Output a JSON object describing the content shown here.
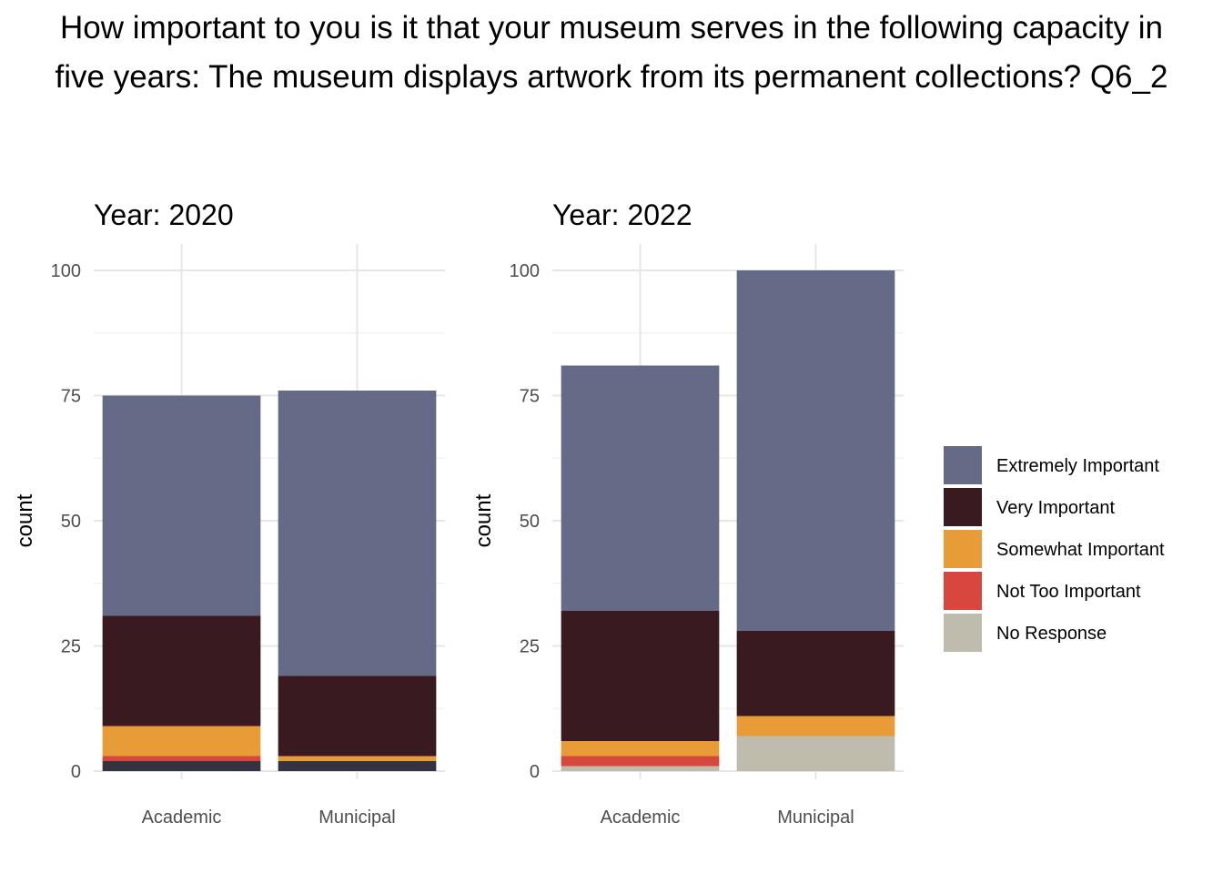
{
  "title": "How important to you is it that your museum serves in the following capacity in five years: The museum displays artwork from its permanent collections? Q6_2",
  "legend": {
    "items": [
      {
        "label": "Extremely Important",
        "color": "#656A87"
      },
      {
        "label": "Very Important",
        "color": "#3A1A21"
      },
      {
        "label": "Somewhat Important",
        "color": "#E89C38"
      },
      {
        "label": "Not Too Important",
        "color": "#D8473E"
      },
      {
        "label": "No Response",
        "color": "#BFBCAD"
      }
    ]
  },
  "chart_data": [
    {
      "type": "bar",
      "stacked": true,
      "title": "Year: 2020",
      "xlabel": "",
      "ylabel": "count",
      "ylim": [
        0,
        100
      ],
      "yticks": [
        "0",
        "25",
        "50",
        "75",
        "100"
      ],
      "categories": [
        "Academic",
        "Municipal"
      ],
      "series": [
        {
          "name": "No Response",
          "values": [
            0,
            0
          ]
        },
        {
          "name": "Extremely Important",
          "values": [
            44,
            57
          ]
        },
        {
          "name": "Very Important",
          "values": [
            22,
            16
          ]
        },
        {
          "name": "Somewhat Important",
          "values": [
            6,
            1
          ]
        },
        {
          "name": "Not Too Important",
          "values": [
            1,
            0
          ]
        },
        {
          "name": "",
          "color": "#35333F",
          "values": [
            2,
            2
          ]
        }
      ],
      "grid": true
    },
    {
      "type": "bar",
      "stacked": true,
      "title": "Year: 2022",
      "xlabel": "",
      "ylabel": "count",
      "ylim": [
        0,
        100
      ],
      "yticks": [
        "0",
        "25",
        "50",
        "75",
        "100"
      ],
      "categories": [
        "Academic",
        "Municipal"
      ],
      "series": [
        {
          "name": "Extremely Important",
          "values": [
            49,
            72
          ]
        },
        {
          "name": "Very Important",
          "values": [
            26,
            17
          ]
        },
        {
          "name": "Somewhat Important",
          "values": [
            3,
            4
          ]
        },
        {
          "name": "Not Too Important",
          "values": [
            2,
            0
          ]
        },
        {
          "name": "No Response",
          "values": [
            1,
            7
          ]
        }
      ],
      "grid": true
    }
  ]
}
